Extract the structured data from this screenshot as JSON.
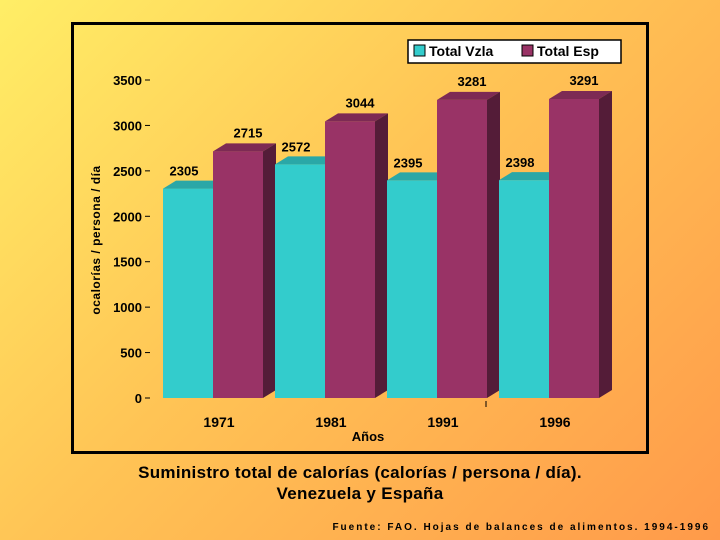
{
  "chart_data": {
    "type": "bar",
    "categories": [
      "1971",
      "1981",
      "1991",
      "1996"
    ],
    "series": [
      {
        "name": "Total Vzla",
        "values": [
          2305,
          2572,
          2395,
          2398
        ],
        "color": "#33cccc",
        "labels": [
          "2305",
          "2572",
          "2395",
          "2398"
        ]
      },
      {
        "name": "Total Esp",
        "values": [
          2715,
          3044,
          3281,
          3291
        ],
        "color": "#993366",
        "labels": [
          "2715",
          "3044",
          "3281",
          "3291"
        ]
      }
    ],
    "ylim": [
      0,
      3500
    ],
    "yticks": [
      "0",
      "500",
      "1000",
      "1500",
      "2000",
      "2500",
      "3000",
      "3500"
    ],
    "ylabel": "ocalorías / persona / día",
    "xlabel": "Años",
    "legend_position": "top-right",
    "grid": false
  },
  "caption": {
    "line1": "Suministro total de calorías (calorías / persona / día).",
    "line2": "Venezuela y España"
  },
  "source": "Fuente: FAO. Hojas de balances de alimentos. 1994-1996"
}
